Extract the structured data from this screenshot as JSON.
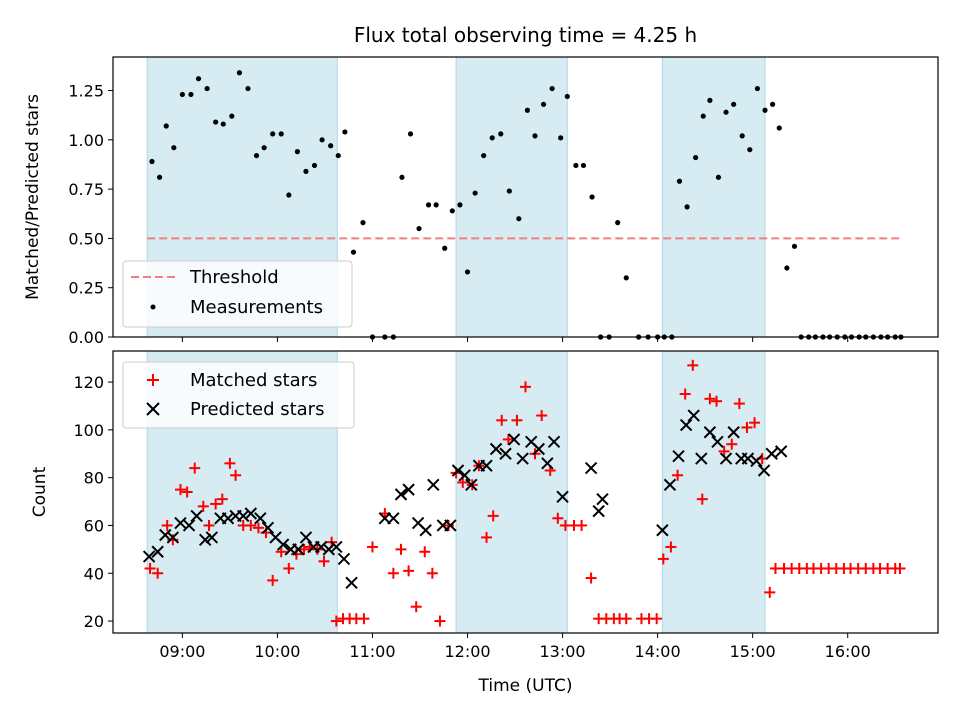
{
  "chart_data": [
    {
      "type": "scatter",
      "title": "Flux total observing time = 4.25 h",
      "xlabel": "",
      "ylabel": "Matched/Predicted stars",
      "xlim": [
        8.27,
        16.95
      ],
      "ylim": [
        0.0,
        1.42
      ],
      "yticks": [
        0.0,
        0.25,
        0.5,
        0.75,
        1.0,
        1.25
      ],
      "ytick_labels": [
        "0.00",
        "0.25",
        "0.50",
        "0.75",
        "1.00",
        "1.25"
      ],
      "xticks": [
        9,
        10,
        11,
        12,
        13,
        14,
        15,
        16
      ],
      "shaded_intervals": [
        [
          8.63,
          10.63
        ],
        [
          11.88,
          13.05
        ],
        [
          14.05,
          15.13
        ]
      ],
      "legend": {
        "location": "lower-left",
        "entries": [
          "Threshold",
          "Measurements"
        ]
      },
      "series": [
        {
          "name": "Threshold",
          "style": "dashed-line",
          "color": "#f08080",
          "x": [
            8.63,
            16.55
          ],
          "y": [
            0.5,
            0.5
          ]
        },
        {
          "name": "Measurements",
          "style": "dot",
          "color": "#000000",
          "x": [
            8.68,
            8.76,
            8.83,
            8.91,
            9.0,
            9.09,
            9.17,
            9.26,
            9.35,
            9.43,
            9.52,
            9.6,
            9.69,
            9.78,
            9.86,
            9.95,
            10.04,
            10.12,
            10.21,
            10.3,
            10.39,
            10.47,
            10.56,
            10.64,
            10.71,
            10.8,
            10.9,
            11.0,
            11.13,
            11.22,
            11.31,
            11.4,
            11.49,
            11.59,
            11.67,
            11.76,
            11.84,
            11.92,
            12.0,
            12.08,
            12.17,
            12.26,
            12.35,
            12.44,
            12.54,
            12.63,
            12.71,
            12.8,
            12.89,
            12.98,
            13.05,
            13.14,
            13.22,
            13.31,
            13.4,
            13.49,
            13.58,
            13.67,
            13.8,
            13.9,
            14.0,
            14.07,
            14.15,
            14.23,
            14.31,
            14.4,
            14.48,
            14.55,
            14.64,
            14.72,
            14.8,
            14.89,
            14.97,
            15.05,
            15.13,
            15.21,
            15.28,
            15.36,
            15.44,
            15.51,
            15.59,
            15.66,
            15.74,
            15.81,
            15.89,
            15.97,
            16.04,
            16.12,
            16.19,
            16.27,
            16.35,
            16.42,
            16.5,
            16.56
          ],
          "y": [
            0.89,
            0.81,
            1.07,
            0.96,
            1.23,
            1.23,
            1.31,
            1.26,
            1.09,
            1.08,
            1.12,
            1.34,
            1.26,
            0.92,
            0.96,
            1.03,
            1.03,
            0.72,
            0.94,
            0.84,
            0.87,
            1.0,
            0.97,
            0.92,
            1.04,
            0.43,
            0.58,
            0.0,
            0.0,
            0.0,
            0.81,
            1.03,
            0.55,
            0.67,
            0.67,
            0.45,
            0.64,
            0.67,
            0.33,
            0.73,
            0.92,
            1.01,
            1.03,
            0.74,
            0.6,
            1.15,
            1.02,
            1.18,
            1.26,
            1.01,
            1.22,
            0.87,
            0.87,
            0.71,
            0.0,
            0.0,
            0.58,
            0.3,
            0.0,
            0.0,
            0.0,
            0.0,
            0.0,
            0.79,
            0.66,
            0.91,
            1.12,
            1.2,
            0.81,
            1.14,
            1.18,
            1.02,
            0.95,
            1.26,
            1.15,
            1.18,
            1.06,
            0.35,
            0.46,
            0.0,
            0.0,
            0.0,
            0.0,
            0.0,
            0.0,
            0.0,
            0.0,
            0.0,
            0.0,
            0.0,
            0.0,
            0.0,
            0.0,
            0.0
          ]
        }
      ]
    },
    {
      "type": "scatter",
      "title": "",
      "xlabel": "Time (UTC)",
      "ylabel": "Count",
      "xlim": [
        8.27,
        16.95
      ],
      "ylim": [
        15,
        133
      ],
      "yticks": [
        20,
        40,
        60,
        80,
        100,
        120
      ],
      "ytick_labels": [
        "20",
        "40",
        "60",
        "80",
        "100",
        "120"
      ],
      "xticks": [
        9,
        10,
        11,
        12,
        13,
        14,
        15,
        16
      ],
      "xtick_labels": [
        "09:00",
        "10:00",
        "11:00",
        "12:00",
        "13:00",
        "14:00",
        "15:00",
        "16:00"
      ],
      "shaded_intervals": [
        [
          8.63,
          10.63
        ],
        [
          11.88,
          13.05
        ],
        [
          14.05,
          15.13
        ]
      ],
      "legend": {
        "location": "top-left",
        "entries": [
          "Matched stars",
          "Predicted stars"
        ]
      },
      "series": [
        {
          "name": "Matched stars",
          "marker": "+",
          "color": "#ff0000",
          "x": [
            8.66,
            8.74,
            8.84,
            8.9,
            8.98,
            9.05,
            9.13,
            9.22,
            9.28,
            9.35,
            9.42,
            9.5,
            9.56,
            9.64,
            9.72,
            9.8,
            9.88,
            9.95,
            10.04,
            10.12,
            10.2,
            10.28,
            10.34,
            10.42,
            10.49,
            10.57,
            10.62,
            10.69,
            10.76,
            10.83,
            10.91,
            11.0,
            11.13,
            11.22,
            11.3,
            11.38,
            11.46,
            11.55,
            11.63,
            11.71,
            11.8,
            11.88,
            11.95,
            12.05,
            12.12,
            12.2,
            12.27,
            12.36,
            12.43,
            12.52,
            12.61,
            12.71,
            12.78,
            12.87,
            12.95,
            13.03,
            13.12,
            13.2,
            13.3,
            13.38,
            13.46,
            13.54,
            13.6,
            13.67,
            13.83,
            13.91,
            13.99,
            14.06,
            14.14,
            14.21,
            14.29,
            14.37,
            14.47,
            14.55,
            14.62,
            14.7,
            14.78,
            14.86,
            14.94,
            15.02,
            15.1,
            15.18,
            15.24,
            15.33,
            15.41,
            15.49,
            15.57,
            15.64,
            15.72,
            15.8,
            15.88,
            15.96,
            16.03,
            16.11,
            16.19,
            16.27,
            16.34,
            16.42,
            16.5,
            16.55
          ],
          "y": [
            42,
            40,
            60,
            54,
            75,
            74,
            84,
            68,
            60,
            69,
            71,
            86,
            81,
            60,
            60,
            59,
            57,
            37,
            49,
            42,
            48,
            50,
            51,
            50,
            45,
            53,
            20,
            21,
            21,
            21,
            21,
            51,
            65,
            40,
            50,
            41,
            26,
            49,
            40,
            20,
            60,
            82,
            78,
            77,
            85,
            55,
            64,
            104,
            96,
            104,
            118,
            90,
            106,
            83,
            63,
            60,
            60,
            60,
            38,
            21,
            21,
            21,
            21,
            21,
            21,
            21,
            21,
            46,
            51,
            81,
            115,
            127,
            71,
            113,
            112,
            91,
            94,
            111,
            101,
            103,
            88,
            32,
            42,
            42,
            42,
            42,
            42,
            42,
            42,
            42,
            42,
            42,
            42,
            42,
            42,
            42,
            42,
            42,
            42,
            42
          ]
        },
        {
          "name": "Predicted stars",
          "marker": "x",
          "color": "#000000",
          "x": [
            8.65,
            8.74,
            8.82,
            8.9,
            8.98,
            9.07,
            9.15,
            9.24,
            9.31,
            9.4,
            9.48,
            9.56,
            9.64,
            9.72,
            9.82,
            9.9,
            9.98,
            10.06,
            10.14,
            10.22,
            10.3,
            10.38,
            10.46,
            10.54,
            10.62,
            10.7,
            10.78,
            11.13,
            11.22,
            11.3,
            11.38,
            11.48,
            11.56,
            11.64,
            11.74,
            11.82,
            11.9,
            11.97,
            12.04,
            12.12,
            12.2,
            12.3,
            12.4,
            12.49,
            12.58,
            12.67,
            12.75,
            12.84,
            12.91,
            13.0,
            13.3,
            13.38,
            13.42,
            14.05,
            14.13,
            14.22,
            14.3,
            14.38,
            14.46,
            14.55,
            14.63,
            14.72,
            14.8,
            14.88,
            14.95,
            15.04,
            15.12,
            15.2,
            15.3
          ],
          "y": [
            47,
            49,
            56,
            55,
            61,
            60,
            64,
            54,
            55,
            63,
            63,
            64,
            64,
            65,
            63,
            59,
            55,
            52,
            50,
            50,
            55,
            51,
            51,
            50,
            51,
            46,
            36,
            63,
            63,
            73,
            75,
            61,
            58,
            77,
            60,
            60,
            83,
            81,
            77,
            85,
            85,
            92,
            90,
            96,
            88,
            95,
            92,
            86,
            95,
            72,
            84,
            66,
            71,
            58,
            77,
            89,
            102,
            106,
            88,
            99,
            95,
            88,
            99,
            88,
            88,
            87,
            83,
            90,
            91
          ]
        }
      ]
    }
  ]
}
